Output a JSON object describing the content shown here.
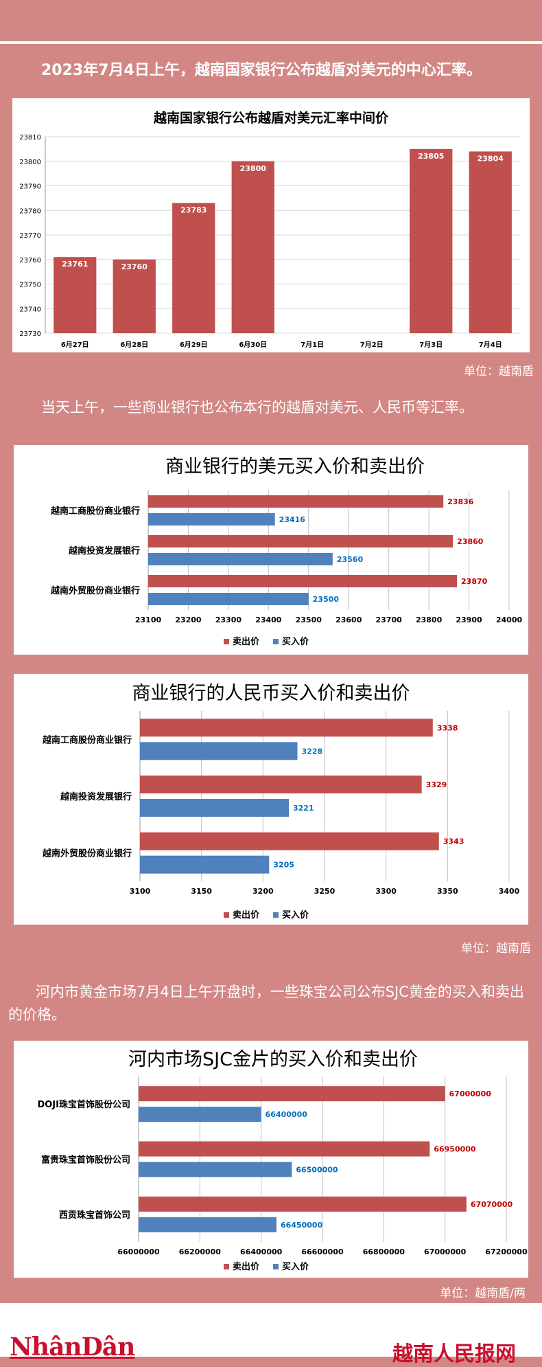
{
  "captions": {
    "intro": "2023年7月4日上午，越南国家银行公布越盾对美元的中心汇率。",
    "banks": "当天上午，一些商业银行也公布本行的越盾对美元、人民币等汇率。",
    "gold": "河内市黄金市场7月4日上午开盘时，一些珠宝公司公布SJC黄金的买入和卖出的价格。"
  },
  "units": {
    "u1": "单位：越南盾",
    "u2": "单位：越南盾",
    "u3": "单位：越南盾/两"
  },
  "footer": {
    "left_logo": "NhânDân",
    "right_logo": "越南人民报网"
  },
  "colors": {
    "sell": "#c0504d",
    "buy": "#4f81bd",
    "sell_label": "#c00000",
    "buy_label": "#0070c0",
    "background": "#d28784"
  },
  "chart_data": [
    {
      "type": "bar",
      "title": "越南国家银行公布越盾对美元汇率中间价",
      "categories": [
        "6月27日",
        "6月28日",
        "6月29日",
        "6月30日",
        "7月1日",
        "7月2日",
        "7月3日",
        "7月4日"
      ],
      "values": [
        23761,
        23760,
        23783,
        23800,
        null,
        null,
        23805,
        23804
      ],
      "value_labels": [
        "23761",
        "23760",
        "23783",
        "23800",
        "",
        "",
        "23805",
        "23804"
      ],
      "ylim": [
        23730,
        23810
      ],
      "yticks": [
        "23730",
        "23740",
        "23750",
        "23760",
        "23770",
        "23780",
        "23790",
        "23800",
        "23810"
      ],
      "grid": true,
      "xlabel": "",
      "ylabel": ""
    },
    {
      "type": "bar",
      "orientation": "horizontal",
      "title": "商业银行的美元买入价和卖出价",
      "categories": [
        "越南工商股份商业银行",
        "越南投资发展银行",
        "越南外贸股份商业银行"
      ],
      "series": [
        {
          "name": "卖出价",
          "values": [
            23836,
            23860,
            23870
          ],
          "labels": [
            "23836",
            "23860",
            "23870"
          ]
        },
        {
          "name": "买入价",
          "values": [
            23416,
            23560,
            23500
          ],
          "labels": [
            "23416",
            "23560",
            "23500"
          ]
        }
      ],
      "xlim": [
        23100,
        24000
      ],
      "xticks": [
        "23100",
        "23200",
        "23300",
        "23400",
        "23500",
        "23600",
        "23700",
        "23800",
        "23900",
        "24000"
      ],
      "legend": "bottom",
      "grid": true
    },
    {
      "type": "bar",
      "orientation": "horizontal",
      "title": "商业银行的人民币买入价和卖出价",
      "categories": [
        "越南工商股份商业银行",
        "越南投资发展银行",
        "越南外贸股份商业银行"
      ],
      "series": [
        {
          "name": "卖出价",
          "values": [
            3338,
            3329,
            3343
          ],
          "labels": [
            "3338",
            "3329",
            "3343"
          ]
        },
        {
          "name": "买入价",
          "values": [
            3228,
            3221,
            3205
          ],
          "labels": [
            "3228",
            "3221",
            "3205"
          ]
        }
      ],
      "xlim": [
        3100,
        3400
      ],
      "xticks": [
        "3100",
        "3150",
        "3200",
        "3250",
        "3300",
        "3350",
        "3400"
      ],
      "legend": "bottom",
      "grid": true
    },
    {
      "type": "bar",
      "orientation": "horizontal",
      "title": "河内市场SJC金片的买入价和卖出价",
      "categories": [
        "DOJI珠宝首饰股份公司",
        "富贵珠宝首饰股份公司",
        "西贡珠宝首饰公司"
      ],
      "series": [
        {
          "name": "卖出价",
          "values": [
            67000000,
            66950000,
            67070000
          ],
          "labels": [
            "67000000",
            "66950000",
            "67070000"
          ]
        },
        {
          "name": "买入价",
          "values": [
            66400000,
            66500000,
            66450000
          ],
          "labels": [
            "66400000",
            "66500000",
            "66450000"
          ]
        }
      ],
      "xlim": [
        66000000,
        67200000
      ],
      "xticks": [
        "66000000",
        "66200000",
        "66400000",
        "66600000",
        "66800000",
        "67000000",
        "67200000"
      ],
      "legend": "bottom",
      "grid": true
    }
  ]
}
